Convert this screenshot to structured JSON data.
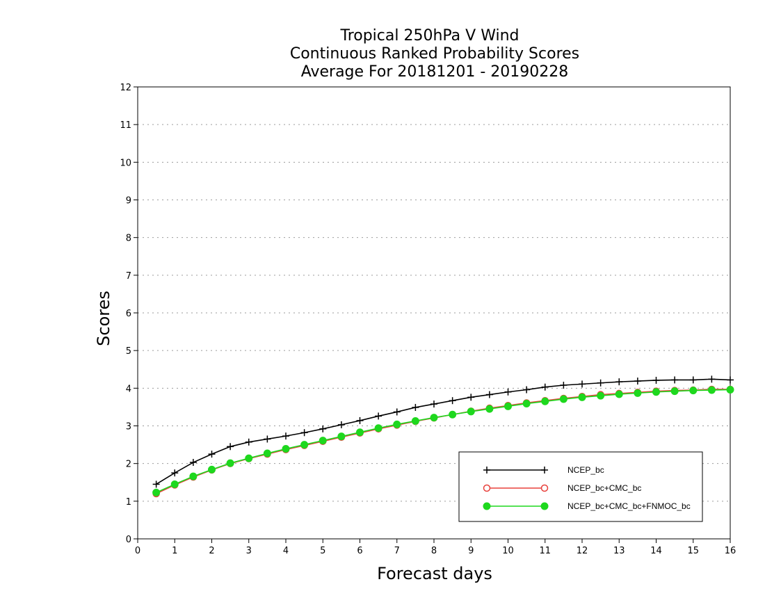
{
  "chart_data": {
    "type": "line",
    "title": [
      "Tropical 250hPa V Wind",
      "Continuous Ranked Probability Scores",
      "Average For 20181201 - 20190228"
    ],
    "xlabel": "Forecast days",
    "ylabel": "Scores",
    "xlim": [
      0,
      16
    ],
    "ylim": [
      0,
      12
    ],
    "xticks": [
      "0",
      "1",
      "2",
      "3",
      "4",
      "5",
      "6",
      "7",
      "8",
      "9",
      "10",
      "11",
      "12",
      "13",
      "14",
      "15",
      "16"
    ],
    "yticks": [
      "0",
      "1",
      "2",
      "3",
      "4",
      "5",
      "6",
      "7",
      "8",
      "9",
      "10",
      "11",
      "12"
    ],
    "grid": true,
    "legend_position": "bottom-right",
    "x": [
      0.5,
      1,
      1.5,
      2,
      2.5,
      3,
      3.5,
      4,
      4.5,
      5,
      5.5,
      6,
      6.5,
      7,
      7.5,
      8,
      8.5,
      9,
      9.5,
      10,
      10.5,
      11,
      11.5,
      12,
      12.5,
      13,
      13.5,
      14,
      14.5,
      15,
      15.5,
      16
    ],
    "series": [
      {
        "name": "NCEP_bc",
        "color": "#000000",
        "marker": "plus",
        "values": [
          1.45,
          1.75,
          2.03,
          2.25,
          2.45,
          2.57,
          2.65,
          2.73,
          2.82,
          2.92,
          3.03,
          3.14,
          3.26,
          3.37,
          3.49,
          3.58,
          3.67,
          3.76,
          3.83,
          3.9,
          3.96,
          4.03,
          4.08,
          4.11,
          4.14,
          4.17,
          4.19,
          4.21,
          4.22,
          4.22,
          4.24,
          4.22
        ]
      },
      {
        "name": "NCEP_bc+CMC_bc",
        "color": "#e8413c",
        "marker": "circle-open",
        "values": [
          1.2,
          1.43,
          1.64,
          1.83,
          2.0,
          2.13,
          2.25,
          2.37,
          2.48,
          2.59,
          2.7,
          2.81,
          2.92,
          3.02,
          3.12,
          3.21,
          3.3,
          3.39,
          3.47,
          3.54,
          3.61,
          3.67,
          3.73,
          3.78,
          3.83,
          3.86,
          3.89,
          3.92,
          3.94,
          3.95,
          3.97,
          3.97
        ]
      },
      {
        "name": "NCEP_bc+CMC_bc+FNMOC_bc",
        "color": "#1ed81e",
        "marker": "circle-filled",
        "values": [
          1.23,
          1.45,
          1.66,
          1.84,
          2.01,
          2.14,
          2.27,
          2.39,
          2.5,
          2.61,
          2.72,
          2.83,
          2.94,
          3.04,
          3.13,
          3.22,
          3.3,
          3.38,
          3.45,
          3.52,
          3.59,
          3.65,
          3.71,
          3.76,
          3.8,
          3.84,
          3.87,
          3.9,
          3.92,
          3.94,
          3.95,
          3.96
        ]
      }
    ]
  }
}
